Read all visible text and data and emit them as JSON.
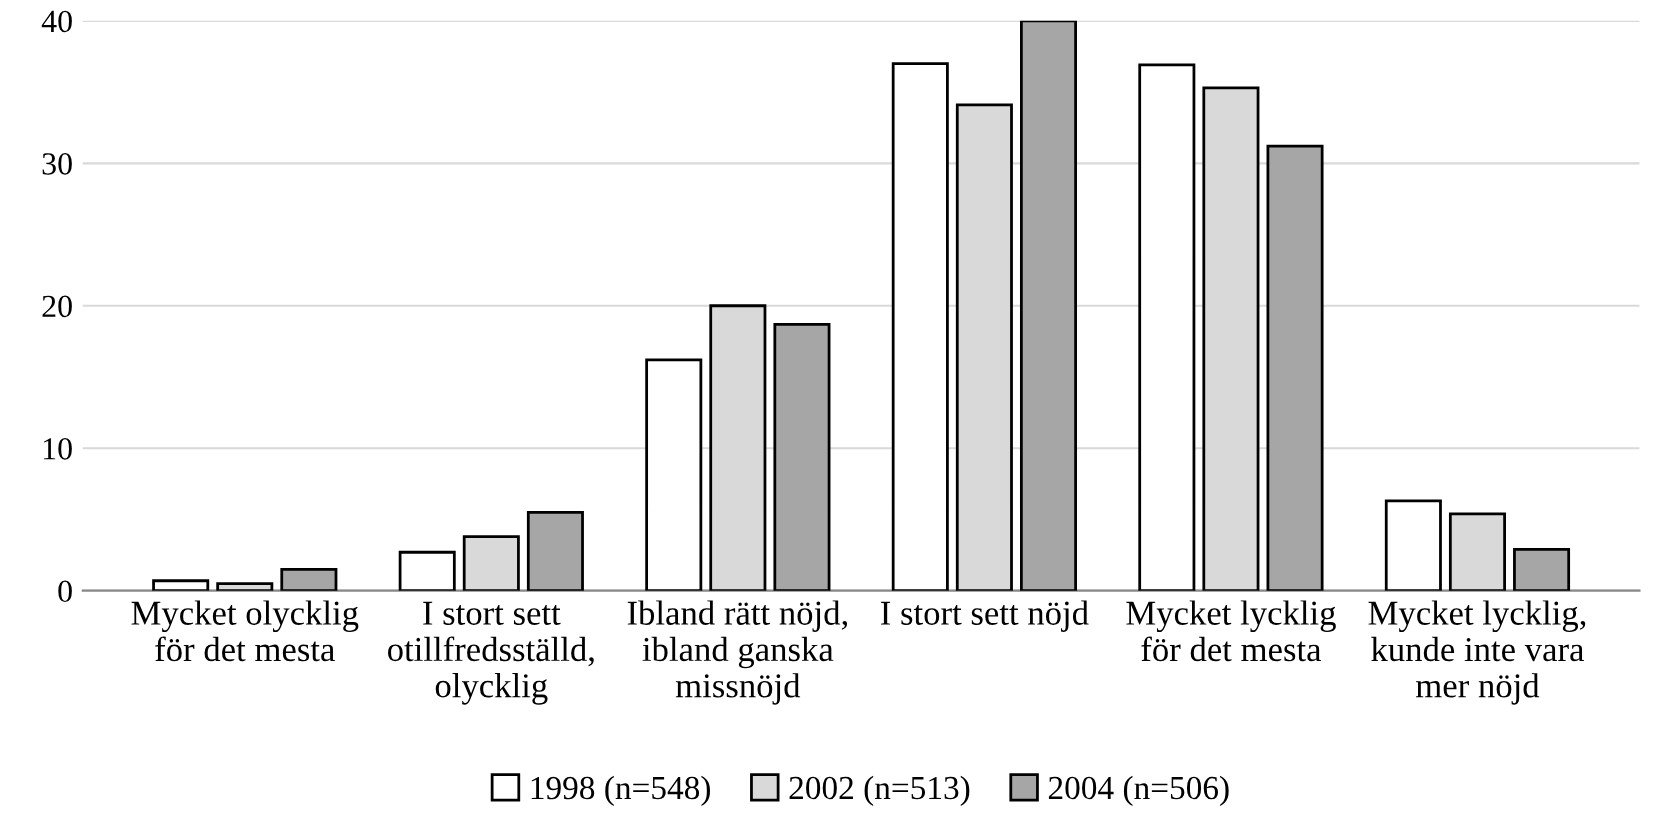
{
  "chart_data": {
    "type": "bar",
    "categories": [
      "Mycket olycklig\nför det mesta",
      "I stort sett\notillfredsställd,\nolycklig",
      "Ibland rätt nöjd,\nibland ganska\nmissnöjd",
      "I stort sett nöjd",
      "Mycket lycklig\nför det mesta",
      "Mycket lycklig,\nkunde inte vara\nmer nöjd"
    ],
    "series": [
      {
        "name": "1998 (n=548)",
        "color": "#ffffff",
        "values": [
          0.7,
          2.7,
          16.2,
          37.0,
          36.9,
          6.3
        ]
      },
      {
        "name": "2002 (n=513)",
        "color": "#d9d9d9",
        "values": [
          0.5,
          3.8,
          20.0,
          34.1,
          35.3,
          5.4
        ]
      },
      {
        "name": "2004 (n=506)",
        "color": "#a6a6a6",
        "values": [
          1.5,
          5.5,
          18.7,
          40.0,
          31.2,
          2.9
        ]
      }
    ],
    "ylim": [
      0,
      40
    ],
    "yticks": [
      0,
      10,
      20,
      30,
      40
    ],
    "grid": "y",
    "legend": "bottom"
  }
}
